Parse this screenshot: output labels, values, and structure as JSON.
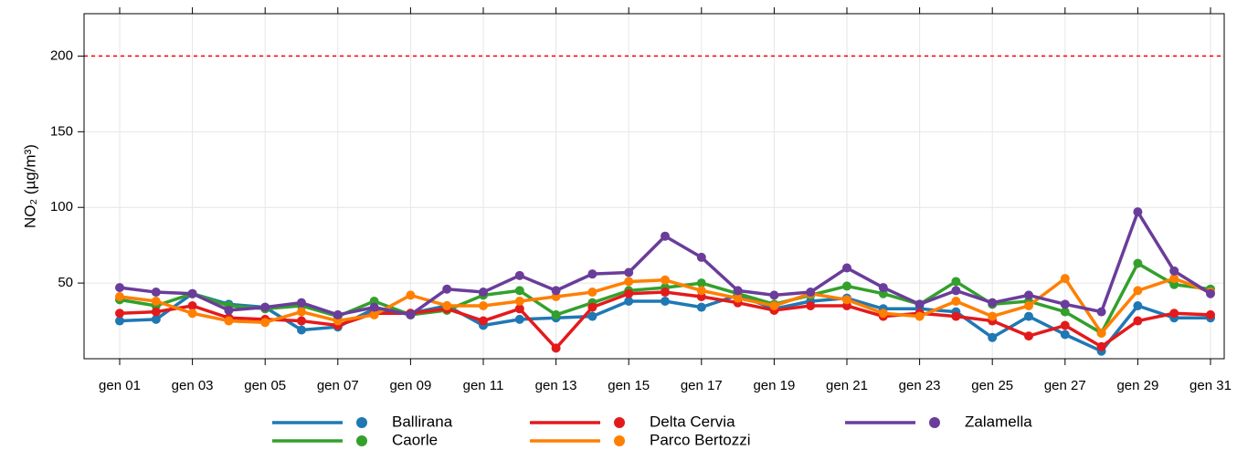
{
  "chart_data": {
    "type": "line",
    "ylabel": "NO₂ (µg/m³)",
    "categories": [
      "gen 01",
      null,
      "gen 03",
      null,
      "gen 05",
      null,
      "gen 07",
      null,
      "gen 09",
      null,
      "gen 11",
      null,
      "gen 13",
      null,
      "gen 15",
      null,
      "gen 17",
      null,
      "gen 19",
      null,
      "gen 21",
      null,
      "gen 23",
      null,
      "gen 25",
      null,
      "gen 27",
      null,
      "gen 29",
      null,
      "gen 31"
    ],
    "ylim": [
      0,
      228
    ],
    "yticks": [
      50,
      100,
      150,
      200
    ],
    "grid": true,
    "hline": {
      "value": 200,
      "color": "#ff0000"
    },
    "series": [
      {
        "name": "Ballirana",
        "color": "#1f78b4",
        "values": [
          25,
          26,
          43,
          36,
          34,
          19,
          21,
          33,
          30,
          35,
          22,
          26,
          27,
          28,
          38,
          38,
          34,
          42,
          33,
          38,
          40,
          33,
          33,
          31,
          14,
          28,
          16,
          5,
          35,
          27,
          27
        ]
      },
      {
        "name": "Caorle",
        "color": "#33a02c",
        "values": [
          39,
          35,
          43,
          35,
          33,
          35,
          28,
          38,
          29,
          32,
          42,
          45,
          29,
          37,
          45,
          47,
          50,
          43,
          36,
          42,
          48,
          43,
          36,
          51,
          36,
          38,
          31,
          17,
          63,
          49,
          46
        ]
      },
      {
        "name": "Delta Cervia",
        "color": "#e31a1c",
        "values": [
          30,
          31,
          35,
          27,
          26,
          25,
          22,
          30,
          30,
          33,
          25,
          33,
          7,
          34,
          43,
          44,
          41,
          37,
          32,
          35,
          35,
          28,
          30,
          28,
          25,
          15,
          22,
          8,
          25,
          30,
          29
        ]
      },
      {
        "name": "Parco Bertozzi",
        "color": "#ff7f00",
        "values": [
          41,
          38,
          30,
          25,
          24,
          31,
          25,
          29,
          42,
          35,
          35,
          38,
          41,
          44,
          51,
          52,
          45,
          40,
          35,
          43,
          39,
          30,
          28,
          38,
          28,
          35,
          53,
          17,
          45,
          53,
          44
        ]
      },
      {
        "name": "Zalamella",
        "color": "#6a3d9a",
        "values": [
          47,
          44,
          43,
          32,
          34,
          37,
          29,
          34,
          29,
          46,
          44,
          55,
          45,
          56,
          57,
          81,
          67,
          45,
          42,
          44,
          60,
          47,
          36,
          45,
          37,
          42,
          36,
          31,
          97,
          58,
          43
        ]
      }
    ]
  }
}
